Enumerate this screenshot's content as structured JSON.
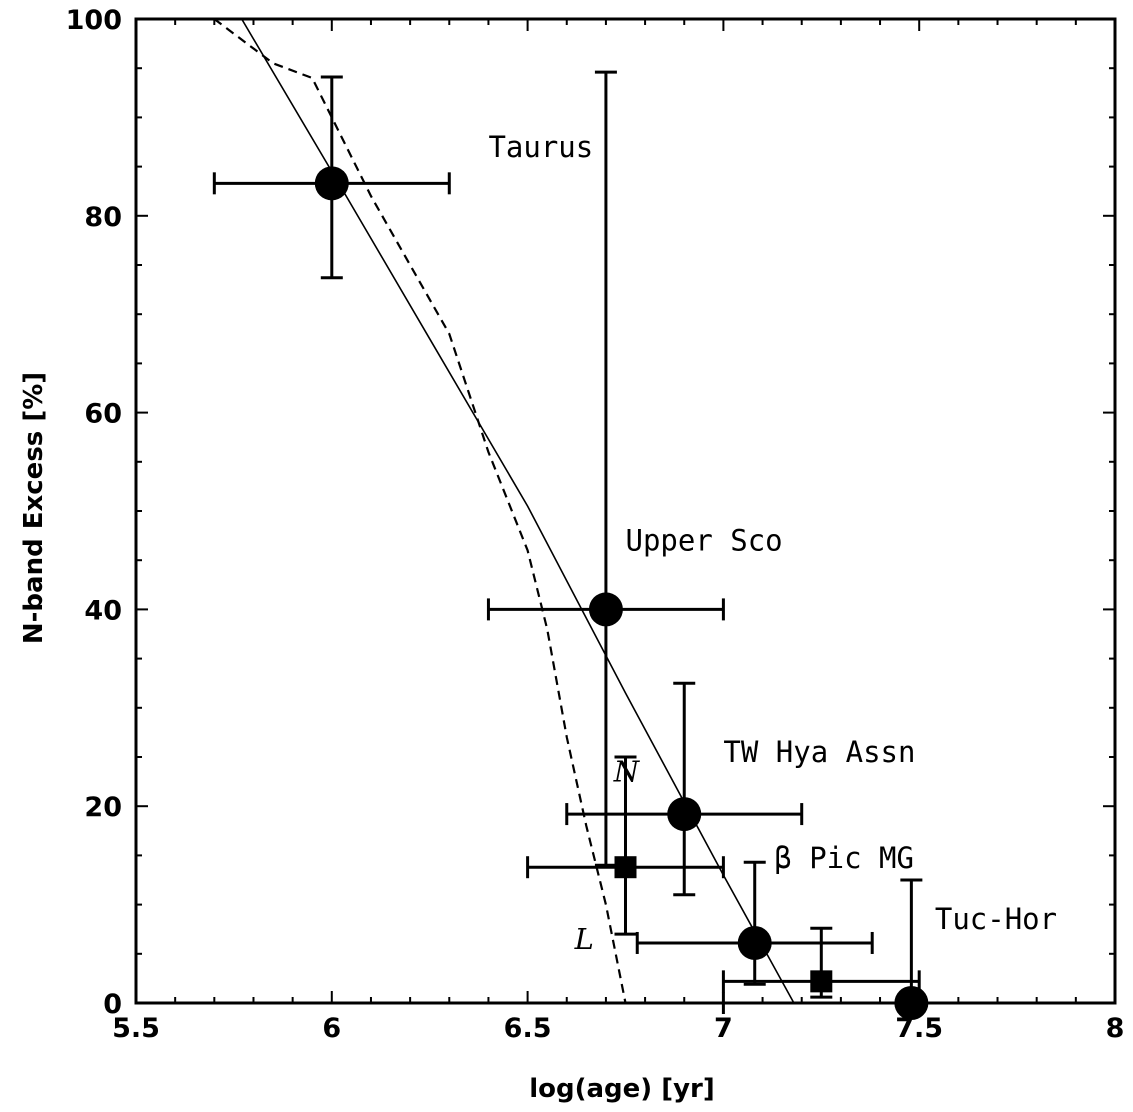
{
  "chart_data": {
    "type": "scatter",
    "title": "",
    "xlabel": "log(age) [yr]",
    "ylabel": "N-band Excess [%]",
    "xlim": [
      5.5,
      8
    ],
    "ylim": [
      0,
      100
    ],
    "x_ticks": [
      "5.5",
      "6",
      "6.5",
      "7",
      "7.5",
      "8"
    ],
    "y_ticks": [
      "0",
      "20",
      "40",
      "60",
      "80",
      "100"
    ],
    "grid": false,
    "legend": null,
    "series": [
      {
        "marker": "circle",
        "points": [
          {
            "label": "Taurus",
            "x": 6.0,
            "y": 83.3,
            "xerr": [
              5.7,
              6.3
            ],
            "yerr": [
              73.7,
              94.1
            ]
          },
          {
            "label": "Upper Sco",
            "x": 6.7,
            "y": 40.0,
            "xerr": [
              6.4,
              7.0
            ],
            "yerr": [
              14.0,
              94.6
            ]
          },
          {
            "label": "TW Hya Assn",
            "x": 6.9,
            "y": 19.2,
            "xerr": [
              6.6,
              7.2
            ],
            "yerr": [
              11.0,
              32.5
            ]
          },
          {
            "label": "β Pic MG",
            "x": 7.08,
            "y": 6.1,
            "xerr": [
              6.78,
              7.38
            ],
            "yerr": [
              1.9,
              14.3
            ]
          },
          {
            "label": "Tuc-Hor",
            "x": 7.48,
            "y": 0.0,
            "xerr": [
              7.0,
              7.5
            ],
            "yerr": [
              0.0,
              12.5
            ]
          }
        ]
      },
      {
        "marker": "square",
        "points": [
          {
            "x": 6.75,
            "y": 13.8,
            "xerr": [
              6.5,
              7.0
            ],
            "yerr": [
              7.0,
              25.0
            ]
          },
          {
            "x": 7.25,
            "y": 2.2,
            "xerr": [
              7.0,
              7.5
            ],
            "yerr": [
              0.6,
              7.6
            ]
          }
        ]
      },
      {
        "line": "solid",
        "points": [
          [
            5.77,
            100
          ],
          [
            6.0,
            84.5
          ],
          [
            6.25,
            67.5
          ],
          [
            6.5,
            50.5
          ],
          [
            6.75,
            31.5
          ],
          [
            7.0,
            13.0
          ],
          [
            7.18,
            0.0
          ]
        ]
      },
      {
        "line": "dashed",
        "points": [
          [
            5.7,
            100
          ],
          [
            5.85,
            95.5
          ],
          [
            5.95,
            94.0
          ],
          [
            6.0,
            90.0
          ],
          [
            6.1,
            82.0
          ],
          [
            6.2,
            75.0
          ],
          [
            6.3,
            68.0
          ],
          [
            6.4,
            56.0
          ],
          [
            6.5,
            46.0
          ],
          [
            6.55,
            38.0
          ],
          [
            6.6,
            27.0
          ],
          [
            6.65,
            18.0
          ],
          [
            6.7,
            10.0
          ],
          [
            6.75,
            0.0
          ]
        ]
      }
    ],
    "annotations": [
      {
        "text": "Taurus",
        "x": 6.4,
        "y": 86,
        "style": "mono"
      },
      {
        "text": "Upper Sco",
        "x": 6.75,
        "y": 46,
        "style": "mono"
      },
      {
        "text": "TW Hya Assn",
        "x": 7.0,
        "y": 24.5,
        "style": "mono"
      },
      {
        "text": "β Pic MG",
        "x": 7.13,
        "y": 13.7,
        "style": "mono"
      },
      {
        "text": "Tuc-Hor",
        "x": 7.54,
        "y": 7.5,
        "style": "mono"
      },
      {
        "text": "N",
        "x": 6.72,
        "y": 22.5,
        "style": "italic"
      },
      {
        "text": "L",
        "x": 6.62,
        "y": 5.5,
        "style": "italic"
      }
    ]
  }
}
